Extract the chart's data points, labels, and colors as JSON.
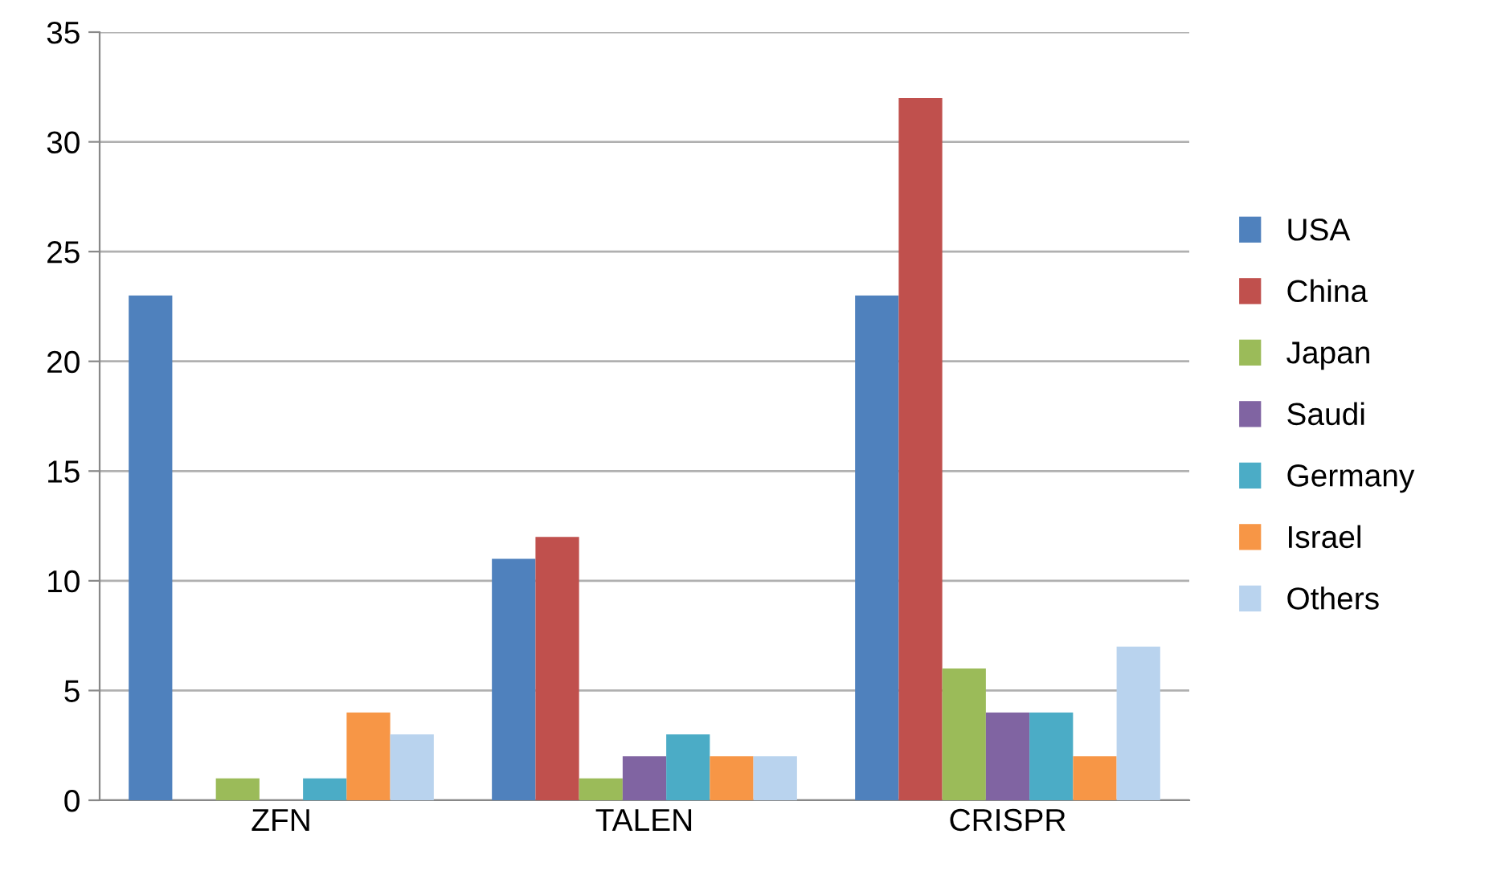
{
  "chart_data": {
    "type": "bar",
    "categories": [
      "ZFN",
      "TALEN",
      "CRISPR"
    ],
    "series": [
      {
        "name": "USA",
        "color": "#4f81bd",
        "values": [
          23,
          11,
          23
        ]
      },
      {
        "name": "China",
        "color": "#c0504d",
        "values": [
          0,
          12,
          32
        ]
      },
      {
        "name": "Japan",
        "color": "#9bbb59",
        "values": [
          1,
          1,
          6
        ]
      },
      {
        "name": "Saudi",
        "color": "#8064a2",
        "values": [
          0,
          2,
          4
        ]
      },
      {
        "name": "Germany",
        "color": "#4bacc6",
        "values": [
          1,
          3,
          4
        ]
      },
      {
        "name": "Israel",
        "color": "#f79646",
        "values": [
          4,
          2,
          2
        ]
      },
      {
        "name": "Others",
        "color": "#b9d3ee",
        "values": [
          3,
          2,
          7
        ]
      }
    ],
    "ylim": [
      0,
      35
    ],
    "yticks": [
      0,
      5,
      10,
      15,
      20,
      25,
      30,
      35
    ],
    "grid": "y",
    "legend": "right"
  }
}
